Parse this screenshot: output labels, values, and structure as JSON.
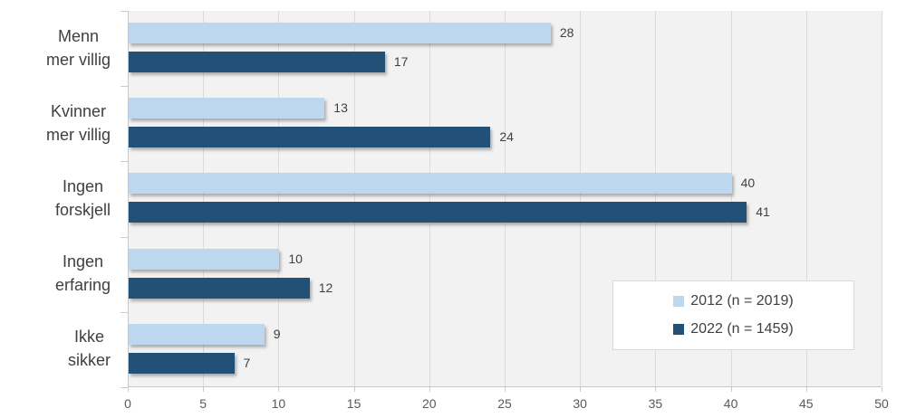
{
  "chart_data": {
    "type": "bar",
    "orientation": "horizontal",
    "title": "",
    "xlabel": "",
    "ylabel": "",
    "categories": [
      {
        "label": "Menn\nmer villig"
      },
      {
        "label": "Kvinner\nmer villig"
      },
      {
        "label": "Ingen\nforskjell"
      },
      {
        "label": "Ingen\nerfaring"
      },
      {
        "label": "Ikke\nsikker"
      }
    ],
    "series": [
      {
        "name": "2012 (n = 2019)",
        "color": "#BDD7EE",
        "values": [
          28,
          13,
          40,
          10,
          9
        ]
      },
      {
        "name": "2022 (n = 1459)",
        "color": "#235077",
        "values": [
          17,
          24,
          41,
          12,
          7
        ]
      }
    ],
    "xlim": [
      0,
      50
    ],
    "xticks": [
      0,
      5,
      10,
      15,
      20,
      25,
      30,
      35,
      40,
      45,
      50
    ],
    "grid": true,
    "data_labels": true,
    "legend_position": "inside-right-lower"
  },
  "colors": {
    "plot_background": "#F2F2F2",
    "gridline": "#DBDBDB",
    "axis_line": "#C9C9C9",
    "category_text": "#3F3F3F",
    "value_text": "#404040",
    "axis_tick_text": "#595959",
    "legend_border": "#D9D9D9",
    "series_2012": "#BDD7EE",
    "series_2022": "#235077"
  }
}
